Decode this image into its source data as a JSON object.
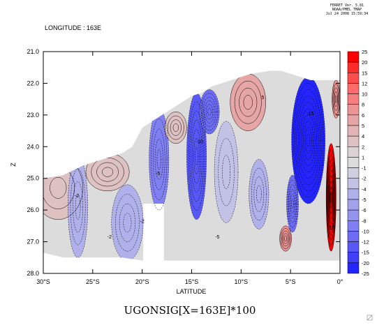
{
  "header": {
    "program": "FERRET Ver. 5.81",
    "org": "NOAA/PMEL TMAP",
    "date": "Jul 24 2008 15:59:34"
  },
  "subtitle": "LONGITUDE : 163E",
  "chart_data": {
    "type": "heatmap",
    "title": "UGONSIG[X=163E]*100",
    "xlabel": "LATITUDE",
    "ylabel": "Z",
    "xlim": [
      -30,
      0
    ],
    "ylim": [
      28.0,
      21.0
    ],
    "x_ticks": [
      {
        "v": -30,
        "label": "30°S"
      },
      {
        "v": -25,
        "label": "25°S"
      },
      {
        "v": -20,
        "label": "20°S"
      },
      {
        "v": -15,
        "label": "15°S"
      },
      {
        "v": -10,
        "label": "10°S"
      },
      {
        "v": -5,
        "label": "5°S"
      },
      {
        "v": 0,
        "label": "0°"
      }
    ],
    "y_ticks": [
      {
        "v": 21.0,
        "label": "21.0"
      },
      {
        "v": 22.0,
        "label": "22.0"
      },
      {
        "v": 23.0,
        "label": "23.0"
      },
      {
        "v": 24.0,
        "label": "24.0"
      },
      {
        "v": 25.0,
        "label": "25.0"
      },
      {
        "v": 26.0,
        "label": "26.0"
      },
      {
        "v": 27.0,
        "label": "27.0"
      },
      {
        "v": 28.0,
        "label": "28.0"
      }
    ],
    "colorbar": {
      "levels": [
        "25",
        "20",
        "15",
        "12",
        "10",
        "8",
        "6",
        "5",
        "4",
        "2",
        "1",
        "-1",
        "-2",
        "-4",
        "-5",
        "-6",
        "-8",
        "-10",
        "-12",
        "-15",
        "-20",
        "-25"
      ],
      "colors": [
        "#ff0000",
        "#ff2a2a",
        "#ff4d4d",
        "#ff6a6a",
        "#f57f7f",
        "#ee9494",
        "#e6a6a6",
        "#e3b4b4",
        "#dec2c2",
        "#dbd3d3",
        "#dcdcdc",
        "#cfcfe0",
        "#c2c2e6",
        "#b0b0ea",
        "#a2a2ec",
        "#9494ee",
        "#8080f2",
        "#6c6cf5",
        "#5858f7",
        "#4040fa",
        "#2424fd"
      ]
    },
    "contour_labels": [
      "-2",
      "-2",
      "-5",
      "-2",
      "-10",
      "-15",
      "-5",
      "10",
      "5"
    ],
    "ocean_top": [
      [
        -30,
        25.0
      ],
      [
        -28,
        24.9
      ],
      [
        -26,
        24.6
      ],
      [
        -24,
        24.4
      ],
      [
        -22,
        24.2
      ],
      [
        -21,
        24.0
      ],
      [
        -20,
        23.4
      ],
      [
        -19,
        23.2
      ],
      [
        -18,
        23.0
      ],
      [
        -17,
        22.8
      ],
      [
        -16,
        22.6
      ],
      [
        -15,
        22.4
      ],
      [
        -14,
        22.3
      ],
      [
        -13,
        22.1
      ],
      [
        -11,
        21.9
      ],
      [
        -9,
        21.7
      ],
      [
        -7,
        21.6
      ],
      [
        -6,
        21.6
      ],
      [
        -5,
        21.7
      ],
      [
        -4,
        21.8
      ],
      [
        -3,
        21.9
      ],
      [
        0,
        21.9
      ]
    ],
    "ocean_bottom": [
      [
        -30,
        27.35
      ],
      [
        -28,
        27.5
      ],
      [
        -25,
        27.5
      ],
      [
        -22,
        27.5
      ],
      [
        -20,
        27.6
      ],
      [
        -17,
        27.6
      ],
      [
        0,
        27.6
      ]
    ],
    "cells": [
      {
        "x": -28.5,
        "z": 25.3,
        "sx": 2.5,
        "sz": 1.0,
        "value": 3
      },
      {
        "x": -26.5,
        "z": 25.9,
        "sx": 1.0,
        "sz": 1.6,
        "value": -4
      },
      {
        "x": -23.5,
        "z": 24.8,
        "sx": 2.2,
        "sz": 0.6,
        "value": 4
      },
      {
        "x": -21.5,
        "z": 26.4,
        "sx": 1.6,
        "sz": 1.2,
        "value": -4
      },
      {
        "x": -18.3,
        "z": 24.4,
        "sx": 1.0,
        "sz": 1.6,
        "value": -8
      },
      {
        "x": -16.6,
        "z": 23.4,
        "sx": 1.1,
        "sz": 0.5,
        "value": 4
      },
      {
        "x": -14.5,
        "z": 24.3,
        "sx": 1.0,
        "sz": 2.0,
        "value": -12
      },
      {
        "x": -13.2,
        "z": 22.9,
        "sx": 1.0,
        "sz": 0.7,
        "value": -10
      },
      {
        "x": -11.5,
        "z": 24.8,
        "sx": 1.2,
        "sz": 1.6,
        "value": -2
      },
      {
        "x": -9.3,
        "z": 22.6,
        "sx": 1.8,
        "sz": 0.9,
        "value": 6
      },
      {
        "x": -8.2,
        "z": 25.5,
        "sx": 1.0,
        "sz": 1.1,
        "value": -4
      },
      {
        "x": -5.5,
        "z": 26.9,
        "sx": 0.6,
        "sz": 0.4,
        "value": 8
      },
      {
        "x": -3.2,
        "z": 23.8,
        "sx": 1.7,
        "sz": 2.0,
        "value": -20
      },
      {
        "x": -4.8,
        "z": 25.8,
        "sx": 0.6,
        "sz": 0.9,
        "value": -10
      },
      {
        "x": -0.9,
        "z": 25.6,
        "sx": 0.5,
        "sz": 1.7,
        "value": 25
      },
      {
        "x": -0.4,
        "z": 22.5,
        "sx": 0.4,
        "sz": 0.6,
        "value": 8
      }
    ],
    "mask": {
      "x0": -19.9,
      "x1": -17.8,
      "z0": 25.8,
      "z1": 28.0
    }
  }
}
